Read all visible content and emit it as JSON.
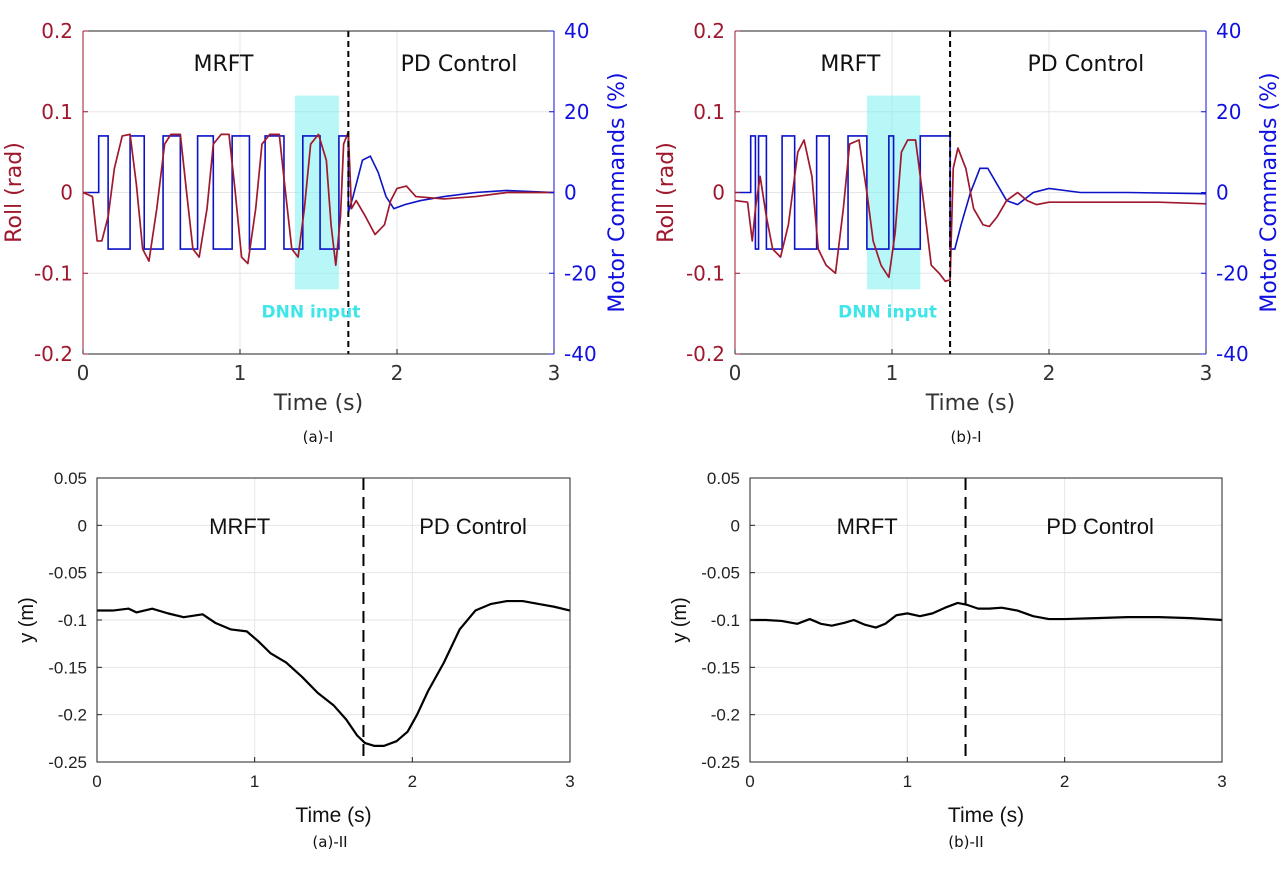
{
  "figure": {
    "panels_top": [
      {
        "caption": "(a)-I",
        "chart_type": "line",
        "xlabel": "Time (s)",
        "ylabel_left": "Roll (rad)",
        "ylabel_right": "Motor Commands (%)",
        "xlim": [
          0,
          3
        ],
        "ylim_left": [
          -0.2,
          0.2
        ],
        "ylim_right": [
          -40,
          40
        ],
        "xticks": [
          "0",
          "1",
          "2",
          "3"
        ],
        "yticks_left": [
          "0.2",
          "0.1",
          "0",
          "-0.1",
          "-0.2"
        ],
        "yticks_right": [
          "40",
          "20",
          "0",
          "-20",
          "-40"
        ],
        "region_left": "MRFT",
        "region_right": "PD Control",
        "switch_time": 1.69,
        "dnn_label": "DNN input",
        "dnn_window": [
          1.35,
          1.63
        ],
        "dnn_window_y": [
          -0.12,
          0.12
        ],
        "colors": {
          "roll": "#a0182e",
          "motor": "#0b12c8",
          "dnn": "#7df0f0",
          "left_axis": "#a0182e",
          "right_axis": "#1010e0"
        },
        "mrft_switch_times": [
          0.1,
          0.16,
          0.3,
          0.39,
          0.51,
          0.62,
          0.73,
          0.83,
          0.95,
          1.06,
          1.16,
          1.28,
          1.4,
          1.51,
          1.63
        ],
        "mrft_level_high": 14,
        "mrft_level_low": -14,
        "motor_pd_points": [
          [
            1.69,
            -5
          ],
          [
            1.72,
            -1
          ],
          [
            1.78,
            8
          ],
          [
            1.83,
            9
          ],
          [
            1.88,
            5
          ],
          [
            1.93,
            -1
          ],
          [
            1.98,
            -4
          ],
          [
            2.05,
            -3
          ],
          [
            2.15,
            -2
          ],
          [
            2.3,
            -1
          ],
          [
            2.5,
            0
          ],
          [
            2.7,
            0.5
          ],
          [
            3.0,
            0
          ]
        ],
        "roll_points": [
          [
            0,
            0
          ],
          [
            0.06,
            -0.005
          ],
          [
            0.09,
            -0.06
          ],
          [
            0.12,
            -0.06
          ],
          [
            0.16,
            -0.03
          ],
          [
            0.2,
            0.03
          ],
          [
            0.25,
            0.07
          ],
          [
            0.3,
            0.072
          ],
          [
            0.34,
            0.01
          ],
          [
            0.38,
            -0.07
          ],
          [
            0.42,
            -0.085
          ],
          [
            0.47,
            -0.02
          ],
          [
            0.52,
            0.06
          ],
          [
            0.56,
            0.072
          ],
          [
            0.62,
            0.072
          ],
          [
            0.66,
            0.0
          ],
          [
            0.7,
            -0.07
          ],
          [
            0.74,
            -0.08
          ],
          [
            0.79,
            -0.02
          ],
          [
            0.83,
            0.06
          ],
          [
            0.88,
            0.072
          ],
          [
            0.93,
            0.072
          ],
          [
            0.97,
            0.0
          ],
          [
            1.01,
            -0.08
          ],
          [
            1.05,
            -0.088
          ],
          [
            1.1,
            -0.02
          ],
          [
            1.14,
            0.06
          ],
          [
            1.19,
            0.072
          ],
          [
            1.25,
            0.072
          ],
          [
            1.29,
            0.0
          ],
          [
            1.33,
            -0.07
          ],
          [
            1.37,
            -0.08
          ],
          [
            1.41,
            -0.02
          ],
          [
            1.45,
            0.06
          ],
          [
            1.5,
            0.072
          ],
          [
            1.55,
            0.04
          ],
          [
            1.58,
            -0.04
          ],
          [
            1.61,
            -0.09
          ],
          [
            1.64,
            -0.03
          ],
          [
            1.66,
            0.06
          ],
          [
            1.69,
            0.075
          ],
          [
            1.71,
            -0.02
          ],
          [
            1.74,
            -0.01
          ],
          [
            1.8,
            -0.03
          ],
          [
            1.86,
            -0.052
          ],
          [
            1.92,
            -0.04
          ],
          [
            1.96,
            -0.01
          ],
          [
            2.0,
            0.005
          ],
          [
            2.06,
            0.008
          ],
          [
            2.12,
            -0.005
          ],
          [
            2.3,
            -0.008
          ],
          [
            2.5,
            -0.005
          ],
          [
            2.7,
            0
          ],
          [
            3.0,
            0
          ]
        ]
      },
      {
        "caption": "(b)-I",
        "chart_type": "line",
        "xlabel": "Time (s)",
        "ylabel_left": "Roll (rad)",
        "ylabel_right": "Motor Commands (%)",
        "xlim": [
          0,
          3
        ],
        "ylim_left": [
          -0.2,
          0.2
        ],
        "ylim_right": [
          -40,
          40
        ],
        "xticks": [
          "0",
          "1",
          "2",
          "3"
        ],
        "yticks_left": [
          "0.2",
          "0.1",
          "0",
          "-0.1",
          "-0.2"
        ],
        "yticks_right": [
          "40",
          "20",
          "0",
          "-20",
          "-40"
        ],
        "region_left": "MRFT",
        "region_right": "PD Control",
        "switch_time": 1.37,
        "dnn_label": "DNN input",
        "dnn_window": [
          0.84,
          1.18
        ],
        "dnn_window_y": [
          -0.12,
          0.12
        ],
        "colors": {
          "roll": "#a0182e",
          "motor": "#0b12c8",
          "dnn": "#7df0f0",
          "left_axis": "#a0182e",
          "right_axis": "#1010e0"
        },
        "mrft_switch_times": [
          0.1,
          0.13,
          0.15,
          0.2,
          0.3,
          0.38,
          0.52,
          0.6,
          0.72,
          0.84,
          0.98,
          1.01,
          1.18
        ],
        "mrft_level_high": 14,
        "mrft_level_low": -14,
        "motor_pd_points": [
          [
            1.37,
            -14
          ],
          [
            1.4,
            -14
          ],
          [
            1.44,
            -8
          ],
          [
            1.5,
            0
          ],
          [
            1.56,
            6
          ],
          [
            1.61,
            6
          ],
          [
            1.67,
            2
          ],
          [
            1.73,
            -2
          ],
          [
            1.8,
            -3
          ],
          [
            1.9,
            0
          ],
          [
            2.0,
            1
          ],
          [
            2.2,
            0
          ],
          [
            2.5,
            0
          ],
          [
            3.0,
            -0.3
          ]
        ],
        "roll_points": [
          [
            0,
            -0.01
          ],
          [
            0.08,
            -0.012
          ],
          [
            0.11,
            -0.06
          ],
          [
            0.13,
            -0.02
          ],
          [
            0.16,
            0.02
          ],
          [
            0.2,
            -0.03
          ],
          [
            0.24,
            -0.07
          ],
          [
            0.29,
            -0.08
          ],
          [
            0.34,
            -0.04
          ],
          [
            0.4,
            0.05
          ],
          [
            0.44,
            0.065
          ],
          [
            0.49,
            0.02
          ],
          [
            0.53,
            -0.07
          ],
          [
            0.58,
            -0.09
          ],
          [
            0.64,
            -0.1
          ],
          [
            0.69,
            -0.02
          ],
          [
            0.73,
            0.06
          ],
          [
            0.79,
            0.065
          ],
          [
            0.84,
            0.0
          ],
          [
            0.88,
            -0.06
          ],
          [
            0.93,
            -0.09
          ],
          [
            0.98,
            -0.105
          ],
          [
            1.02,
            -0.05
          ],
          [
            1.06,
            0.05
          ],
          [
            1.1,
            0.065
          ],
          [
            1.15,
            0.065
          ],
          [
            1.2,
            -0.01
          ],
          [
            1.25,
            -0.09
          ],
          [
            1.3,
            -0.1
          ],
          [
            1.34,
            -0.11
          ],
          [
            1.37,
            -0.108
          ],
          [
            1.39,
            0.03
          ],
          [
            1.42,
            0.055
          ],
          [
            1.47,
            0.03
          ],
          [
            1.52,
            -0.02
          ],
          [
            1.58,
            -0.04
          ],
          [
            1.62,
            -0.042
          ],
          [
            1.67,
            -0.03
          ],
          [
            1.73,
            -0.01
          ],
          [
            1.8,
            0.0
          ],
          [
            1.86,
            -0.01
          ],
          [
            1.92,
            -0.015
          ],
          [
            2.0,
            -0.012
          ],
          [
            2.3,
            -0.012
          ],
          [
            2.7,
            -0.012
          ],
          [
            3.0,
            -0.014
          ]
        ]
      }
    ],
    "panels_bottom": [
      {
        "caption": "(a)-II",
        "chart_type": "line",
        "xlabel": "Time (s)",
        "ylabel": "y (m)",
        "xlim": [
          0,
          3
        ],
        "ylim": [
          -0.25,
          0.05
        ],
        "xticks": [
          "0",
          "1",
          "2",
          "3"
        ],
        "yticks": [
          "0.05",
          "0",
          "-0.05",
          "-0.1",
          "-0.15",
          "-0.2",
          "-0.25"
        ],
        "region_left": "MRFT",
        "region_right": "PD Control",
        "switch_time": 1.69,
        "series_color": "#000000",
        "points": [
          [
            0,
            -0.09
          ],
          [
            0.1,
            -0.09
          ],
          [
            0.2,
            -0.088
          ],
          [
            0.25,
            -0.092
          ],
          [
            0.35,
            -0.088
          ],
          [
            0.45,
            -0.093
          ],
          [
            0.55,
            -0.097
          ],
          [
            0.67,
            -0.094
          ],
          [
            0.75,
            -0.103
          ],
          [
            0.85,
            -0.11
          ],
          [
            0.95,
            -0.112
          ],
          [
            1.02,
            -0.122
          ],
          [
            1.1,
            -0.135
          ],
          [
            1.2,
            -0.145
          ],
          [
            1.3,
            -0.16
          ],
          [
            1.4,
            -0.177
          ],
          [
            1.5,
            -0.19
          ],
          [
            1.58,
            -0.205
          ],
          [
            1.65,
            -0.222
          ],
          [
            1.7,
            -0.23
          ],
          [
            1.76,
            -0.233
          ],
          [
            1.82,
            -0.233
          ],
          [
            1.9,
            -0.228
          ],
          [
            1.97,
            -0.218
          ],
          [
            2.03,
            -0.2
          ],
          [
            2.1,
            -0.175
          ],
          [
            2.2,
            -0.145
          ],
          [
            2.3,
            -0.11
          ],
          [
            2.4,
            -0.09
          ],
          [
            2.5,
            -0.083
          ],
          [
            2.6,
            -0.08
          ],
          [
            2.7,
            -0.08
          ],
          [
            2.8,
            -0.083
          ],
          [
            2.9,
            -0.086
          ],
          [
            3.0,
            -0.09
          ]
        ]
      },
      {
        "caption": "(b)-II",
        "chart_type": "line",
        "xlabel": "Time (s)",
        "ylabel": "y (m)",
        "xlim": [
          0,
          3
        ],
        "ylim": [
          -0.25,
          0.05
        ],
        "xticks": [
          "0",
          "1",
          "2",
          "3"
        ],
        "yticks": [
          "0.05",
          "0",
          "-0.05",
          "-0.1",
          "-0.15",
          "-0.2",
          "-0.25"
        ],
        "region_left": "MRFT",
        "region_right": "PD Control",
        "switch_time": 1.37,
        "series_color": "#000000",
        "points": [
          [
            0,
            -0.1
          ],
          [
            0.1,
            -0.1
          ],
          [
            0.2,
            -0.101
          ],
          [
            0.3,
            -0.104
          ],
          [
            0.38,
            -0.099
          ],
          [
            0.45,
            -0.104
          ],
          [
            0.52,
            -0.106
          ],
          [
            0.6,
            -0.103
          ],
          [
            0.66,
            -0.1
          ],
          [
            0.73,
            -0.105
          ],
          [
            0.8,
            -0.108
          ],
          [
            0.86,
            -0.104
          ],
          [
            0.93,
            -0.095
          ],
          [
            1.0,
            -0.093
          ],
          [
            1.08,
            -0.096
          ],
          [
            1.16,
            -0.093
          ],
          [
            1.24,
            -0.087
          ],
          [
            1.32,
            -0.082
          ],
          [
            1.38,
            -0.084
          ],
          [
            1.45,
            -0.088
          ],
          [
            1.52,
            -0.088
          ],
          [
            1.6,
            -0.087
          ],
          [
            1.7,
            -0.09
          ],
          [
            1.8,
            -0.096
          ],
          [
            1.9,
            -0.099
          ],
          [
            2.0,
            -0.099
          ],
          [
            2.2,
            -0.098
          ],
          [
            2.4,
            -0.097
          ],
          [
            2.6,
            -0.097
          ],
          [
            2.8,
            -0.098
          ],
          [
            3.0,
            -0.1
          ]
        ]
      }
    ]
  },
  "chart_data": [
    {
      "type": "line",
      "title": "(a)-I",
      "xlabel": "Time (s)",
      "ylabel": "Roll (rad)",
      "y2label": "Motor Commands (%)",
      "xlim": [
        0,
        3
      ],
      "ylim": [
        -0.2,
        0.2
      ],
      "y2lim": [
        -40,
        40
      ],
      "series": [
        {
          "name": "Roll",
          "axis": "left"
        },
        {
          "name": "Motor Commands",
          "axis": "right"
        }
      ],
      "annotations": [
        "MRFT",
        "PD Control",
        "DNN input"
      ]
    },
    {
      "type": "line",
      "title": "(b)-I",
      "xlabel": "Time (s)",
      "ylabel": "Roll (rad)",
      "y2label": "Motor Commands (%)",
      "xlim": [
        0,
        3
      ],
      "ylim": [
        -0.2,
        0.2
      ],
      "y2lim": [
        -40,
        40
      ],
      "series": [
        {
          "name": "Roll",
          "axis": "left"
        },
        {
          "name": "Motor Commands",
          "axis": "right"
        }
      ],
      "annotations": [
        "MRFT",
        "PD Control",
        "DNN input"
      ]
    },
    {
      "type": "line",
      "title": "(a)-II",
      "xlabel": "Time (s)",
      "ylabel": "y (m)",
      "xlim": [
        0,
        3
      ],
      "ylim": [
        -0.25,
        0.05
      ],
      "annotations": [
        "MRFT",
        "PD Control"
      ]
    },
    {
      "type": "line",
      "title": "(b)-II",
      "xlabel": "Time (s)",
      "ylabel": "y (m)",
      "xlim": [
        0,
        3
      ],
      "ylim": [
        -0.25,
        0.05
      ],
      "annotations": [
        "MRFT",
        "PD Control"
      ]
    }
  ]
}
